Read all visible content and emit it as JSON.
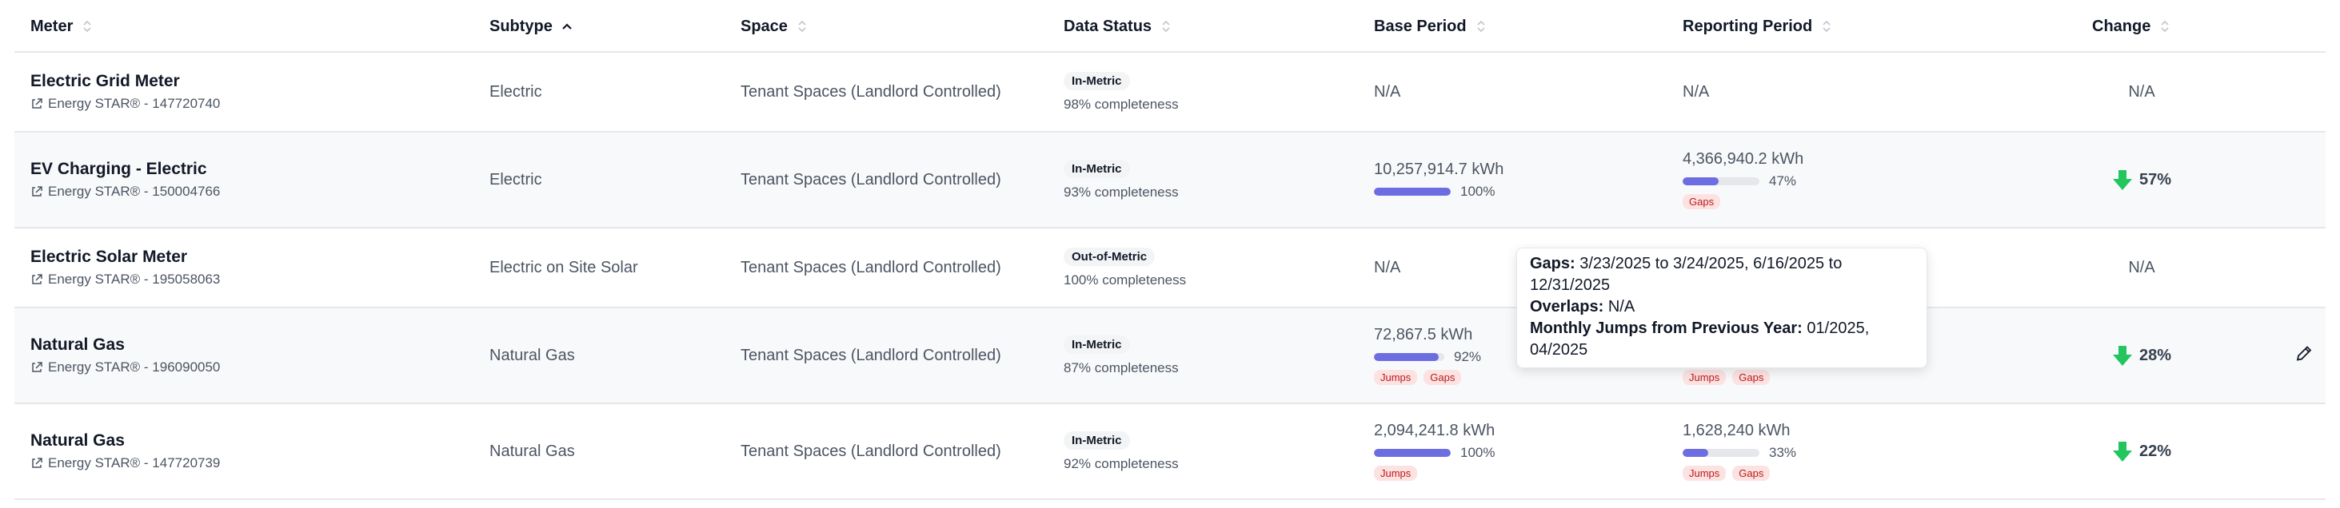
{
  "headers": {
    "meter": "Meter",
    "subtype": "Subtype",
    "space": "Space",
    "data_status": "Data Status",
    "base_period": "Base Period",
    "reporting_period": "Reporting Period",
    "change": "Change"
  },
  "icons": {
    "external_link": "external-link-icon",
    "sort": "sort-icon",
    "sort_ascending": "chevron-up-icon",
    "down_arrow": "arrow-down-icon",
    "edit": "pencil-icon"
  },
  "colors": {
    "progress_fill": "#6d6de2",
    "tag_bg": "#fde2e2",
    "tag_text": "#b91c1c",
    "down_arrow": "#22c55e",
    "alt_row": "#f8f9fa"
  },
  "rows": [
    {
      "meter_name": "Electric Grid Meter",
      "meter_source": "Energy STAR® - 147720740",
      "subtype": "Electric",
      "space": "Tenant Spaces (Landlord Controlled)",
      "status": "In-Metric",
      "completeness": "98% completeness",
      "base_value": "N/A",
      "reporting_value": "N/A",
      "change": "N/A"
    },
    {
      "meter_name": "EV Charging - Electric",
      "meter_source": "Energy STAR® - 150004766",
      "subtype": "Electric",
      "space": "Tenant Spaces (Landlord Controlled)",
      "status": "In-Metric",
      "completeness": "93% completeness",
      "base_value": "10,257,914.7 kWh",
      "base_pct_label": "100%",
      "base_pct": 100,
      "reporting_value": "4,366,940.2 kWh",
      "reporting_pct_label": "47%",
      "reporting_pct": 47,
      "reporting_tags": [
        "Gaps"
      ],
      "change": "57%"
    },
    {
      "meter_name": "Electric Solar Meter",
      "meter_source": "Energy STAR® - 195058063",
      "subtype": "Electric on Site Solar",
      "space": "Tenant Spaces (Landlord Controlled)",
      "status": "Out-of-Metric",
      "completeness": "100% completeness",
      "base_value": "N/A",
      "change": "N/A"
    },
    {
      "meter_name": "Natural Gas",
      "meter_source": "Energy STAR® - 196090050",
      "subtype": "Natural Gas",
      "space": "Tenant Spaces (Landlord Controlled)",
      "status": "In-Metric",
      "completeness": "87% completeness",
      "base_value": "72,867.5 kWh",
      "base_pct_label": "92%",
      "base_pct": 92,
      "base_tags": [
        "Jumps",
        "Gaps"
      ],
      "reporting_tags": [
        "Jumps",
        "Gaps"
      ],
      "change": "28%"
    },
    {
      "meter_name": "Natural Gas",
      "meter_source": "Energy STAR® - 147720739",
      "subtype": "Natural Gas",
      "space": "Tenant Spaces (Landlord Controlled)",
      "status": "In-Metric",
      "completeness": "92% completeness",
      "base_value": "2,094,241.8 kWh",
      "base_pct_label": "100%",
      "base_pct": 100,
      "base_tags": [
        "Jumps"
      ],
      "reporting_value": "1,628,240 kWh",
      "reporting_pct_label": "33%",
      "reporting_pct": 33,
      "reporting_tags": [
        "Jumps",
        "Gaps"
      ],
      "change": "22%"
    }
  ],
  "tooltip": {
    "gaps_label": "Gaps:",
    "gaps_value": "3/23/2025 to 3/24/2025, 6/16/2025 to 12/31/2025",
    "overlaps_label": "Overlaps:",
    "overlaps_value": "N/A",
    "jumps_label": "Monthly Jumps from Previous Year:",
    "jumps_value": "01/2025, 04/2025"
  }
}
